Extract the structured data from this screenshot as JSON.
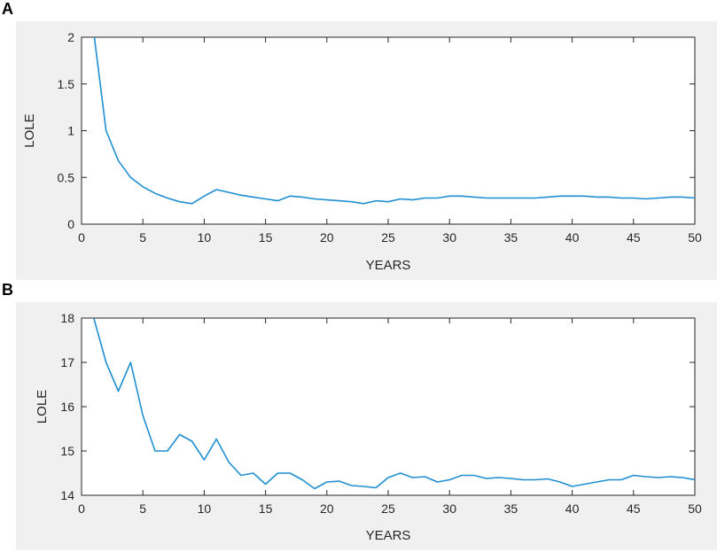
{
  "panels": [
    {
      "letter": "A"
    },
    {
      "letter": "B"
    }
  ],
  "chart_data": [
    {
      "type": "line",
      "xlabel": "YEARS",
      "ylabel": "LOLE",
      "xlim": [
        0,
        50
      ],
      "ylim": [
        0,
        2
      ],
      "xticks": [
        0,
        5,
        10,
        15,
        20,
        25,
        30,
        35,
        40,
        45,
        50
      ],
      "yticks": [
        0,
        0.5,
        1,
        1.5,
        2
      ],
      "ytick_labels": [
        "0",
        "0.5",
        "1",
        "1.5",
        "2"
      ],
      "grid": false,
      "line_color": "#1f8fd1",
      "background": "#f0f0f0",
      "series": [
        {
          "x": [
            1,
            2,
            3,
            4,
            5,
            6,
            7,
            8,
            9,
            10,
            11,
            12,
            13,
            14,
            15,
            16,
            17,
            18,
            19,
            20,
            21,
            22,
            23,
            24,
            25,
            26,
            27,
            28,
            29,
            30,
            31,
            32,
            33,
            34,
            35,
            36,
            37,
            38,
            39,
            40,
            41,
            42,
            43,
            44,
            45,
            46,
            47,
            48,
            49,
            50
          ],
          "values": [
            2.05,
            1.0,
            0.68,
            0.5,
            0.4,
            0.33,
            0.28,
            0.24,
            0.22,
            0.3,
            0.37,
            0.34,
            0.31,
            0.29,
            0.27,
            0.25,
            0.3,
            0.29,
            0.27,
            0.26,
            0.25,
            0.24,
            0.22,
            0.25,
            0.24,
            0.27,
            0.26,
            0.28,
            0.28,
            0.3,
            0.3,
            0.29,
            0.28,
            0.28,
            0.28,
            0.28,
            0.28,
            0.29,
            0.3,
            0.3,
            0.3,
            0.29,
            0.29,
            0.28,
            0.28,
            0.27,
            0.28,
            0.29,
            0.29,
            0.28
          ]
        }
      ]
    },
    {
      "type": "line",
      "xlabel": "YEARS",
      "ylabel": "LOLE",
      "xlim": [
        0,
        50
      ],
      "ylim": [
        14,
        18
      ],
      "xticks": [
        0,
        5,
        10,
        15,
        20,
        25,
        30,
        35,
        40,
        45,
        50
      ],
      "yticks": [
        14,
        15,
        16,
        17,
        18
      ],
      "ytick_labels": [
        "14",
        "15",
        "16",
        "17",
        "18"
      ],
      "grid": false,
      "line_color": "#1f8fd1",
      "background": "#f0f0f0",
      "series": [
        {
          "x": [
            1,
            2,
            3,
            4,
            5,
            6,
            7,
            8,
            9,
            10,
            11,
            12,
            13,
            14,
            15,
            16,
            17,
            18,
            19,
            20,
            21,
            22,
            23,
            24,
            25,
            26,
            27,
            28,
            29,
            30,
            31,
            32,
            33,
            34,
            35,
            36,
            37,
            38,
            39,
            40,
            41,
            42,
            43,
            44,
            45,
            46,
            47,
            48,
            49,
            50
          ],
          "values": [
            18.0,
            17.0,
            16.35,
            17.0,
            15.8,
            15.0,
            15.0,
            15.37,
            15.22,
            14.8,
            15.27,
            14.75,
            14.45,
            14.5,
            14.25,
            14.5,
            14.5,
            14.35,
            14.15,
            14.3,
            14.32,
            14.22,
            14.2,
            14.17,
            14.4,
            14.5,
            14.4,
            14.42,
            14.3,
            14.35,
            14.45,
            14.45,
            14.38,
            14.4,
            14.38,
            14.35,
            14.35,
            14.37,
            14.3,
            14.2,
            14.25,
            14.3,
            14.35,
            14.35,
            14.45,
            14.42,
            14.4,
            14.42,
            14.4,
            14.35
          ]
        }
      ]
    }
  ]
}
